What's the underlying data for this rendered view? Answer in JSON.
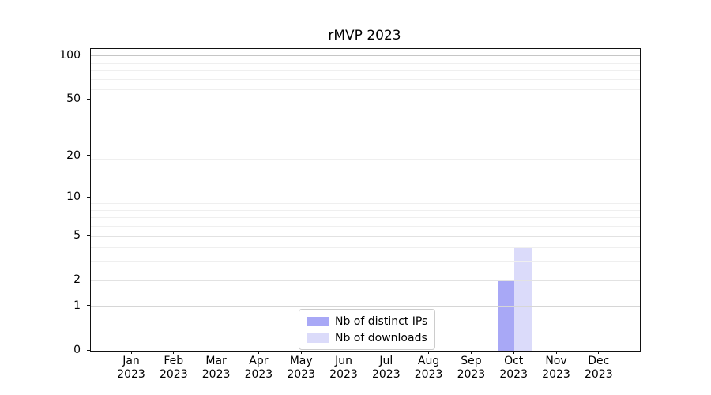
{
  "chart_data": {
    "type": "bar",
    "title": "rMVP 2023",
    "categories": [
      "Jan",
      "Feb",
      "Mar",
      "Apr",
      "May",
      "Jun",
      "Jul",
      "Aug",
      "Sep",
      "Oct",
      "Nov",
      "Dec"
    ],
    "category_year": "2023",
    "series": [
      {
        "name": "Nb of distinct IPs",
        "color": "#a8a8f6",
        "values": [
          0,
          0,
          0,
          0,
          0,
          0,
          0,
          0,
          0,
          2,
          0,
          0
        ]
      },
      {
        "name": "Nb of downloads",
        "color": "#dbdbfa",
        "values": [
          0,
          0,
          0,
          0,
          0,
          0,
          0,
          0,
          0,
          4,
          0,
          0
        ]
      }
    ],
    "xlabel": "",
    "ylabel": "",
    "y_scale": "log10(1+y)",
    "y_major_ticks": [
      0,
      1,
      2,
      5,
      10,
      20,
      50,
      100
    ],
    "y_tick_labels": [
      "0",
      "1",
      "2",
      "5",
      "10",
      "20",
      "50",
      "100"
    ],
    "y_minor_gridlines": [
      3,
      4,
      6,
      7,
      8,
      9,
      19,
      29,
      39,
      59,
      69,
      79,
      89
    ],
    "ylim": [
      0,
      112
    ],
    "grid": "horizontal, major and minor",
    "legend_position": "lower center inside plot",
    "colors": {
      "axis": "#111111",
      "grid_major": "#e2e2e2",
      "grid_major_one": "#d6d6d6",
      "grid_major_top": "#c6c6c6",
      "grid_minor": "#efefef",
      "background": "#ffffff"
    }
  }
}
